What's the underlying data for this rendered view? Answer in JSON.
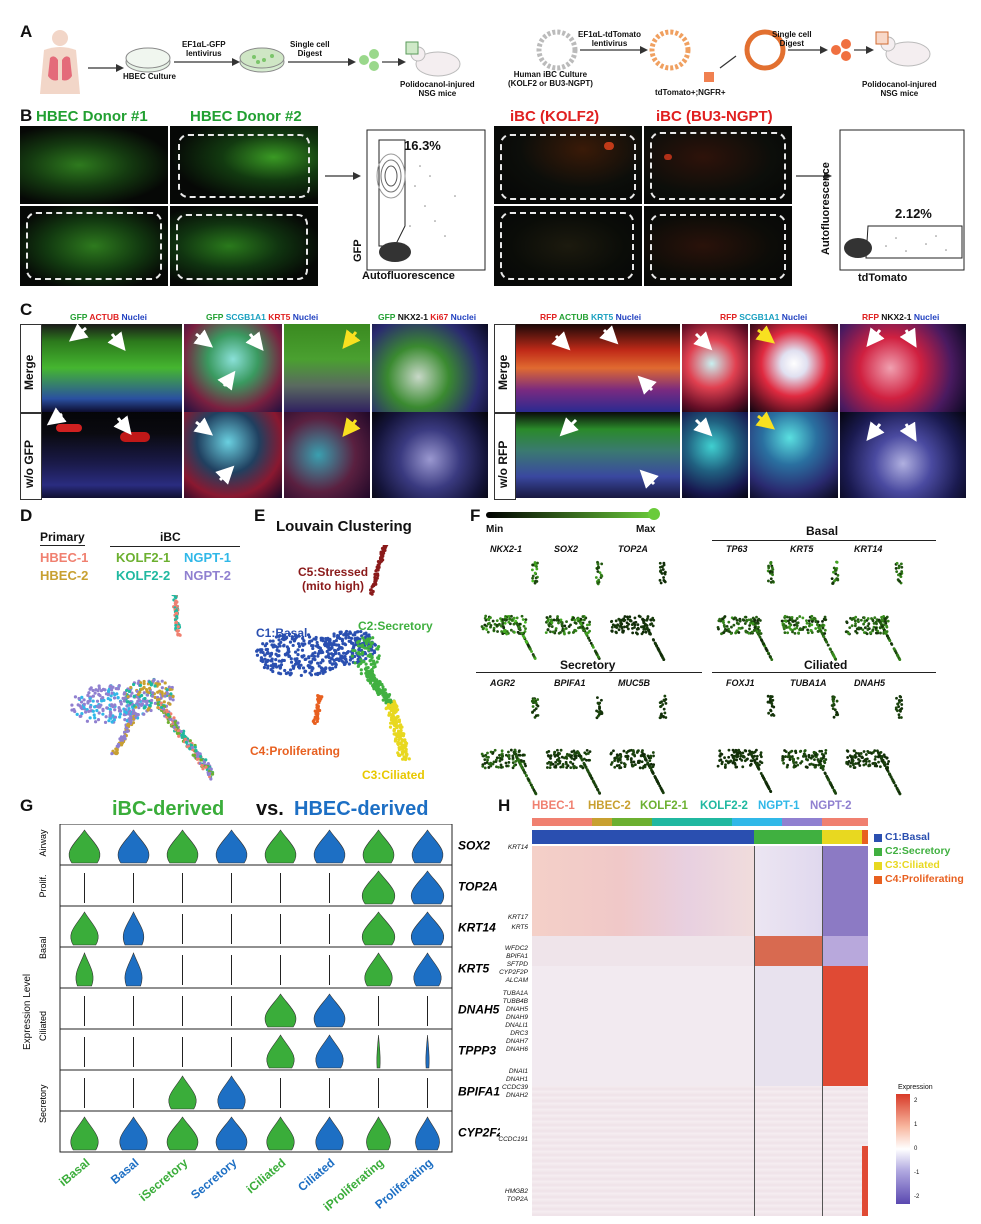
{
  "panels": {
    "A": "A",
    "B": "B",
    "C": "C",
    "D": "D",
    "E": "E",
    "F": "F",
    "G": "G",
    "H": "H"
  },
  "panelA": {
    "hbec_culture": "HBEC Culture",
    "lentivirus_gfp": "EF1αL-GFP\nlentivirus",
    "single_cell_digest_1": "Single cell\nDigest",
    "polidocanol_1": "Polidocanol-injured\nNSG mice",
    "ibc_culture": "Human iBC Culture\n(KOLF2 or BU3-NGPT)",
    "lentivirus_tdt": "EF1αL-tdTomato\nlentivirus",
    "tdtomato_ngfr": "tdTomato+;NGFR+",
    "single_cell_digest_2": "Single cell\nDigest",
    "polidocanol_2": "Polidocanol-injured\nNSG mice"
  },
  "panelB": {
    "hbec_donor1": "HBEC Donor #1",
    "hbec_donor2": "HBEC Donor #2",
    "ibc_kolf2": "iBC (KOLF2)",
    "ibc_bu3": "iBC (BU3-NGPT)",
    "gfp_pct": "16.3%",
    "gfp_axis_y": "GFP",
    "gfp_axis_x": "Autofluorescence",
    "tdt_pct": "2.12%",
    "tdt_axis_y": "Autofluorescence",
    "tdt_axis_x": "tdTomato"
  },
  "panelC": {
    "h1": [
      {
        "t": "GFP",
        "c": "#22a032"
      },
      {
        "t": " ACTUB",
        "c": "#e02020"
      },
      {
        "t": " Nuclei",
        "c": "#2040c0"
      }
    ],
    "h2": [
      {
        "t": "GFP",
        "c": "#22a032"
      },
      {
        "t": " SCGB1A1",
        "c": "#1aa0c0"
      },
      {
        "t": " KRT5",
        "c": "#e02020"
      },
      {
        "t": " Nuclei",
        "c": "#2040c0"
      }
    ],
    "h3": [
      {
        "t": "GFP",
        "c": "#22a032"
      },
      {
        "t": " NKX2-1",
        "c": "#111111"
      },
      {
        "t": " Ki67",
        "c": "#e02020"
      },
      {
        "t": " Nuclei",
        "c": "#2040c0"
      }
    ],
    "h4": [
      {
        "t": "RFP",
        "c": "#e02020"
      },
      {
        "t": " ACTUB",
        "c": "#22a032"
      },
      {
        "t": " KRT5",
        "c": "#1aa0c0"
      },
      {
        "t": " Nuclei",
        "c": "#2040c0"
      }
    ],
    "h5": [
      {
        "t": "RFP",
        "c": "#e02020"
      },
      {
        "t": " SCGB1A1",
        "c": "#1aa0c0"
      },
      {
        "t": " Nuclei",
        "c": "#2040c0"
      }
    ],
    "h6": [
      {
        "t": "RFP",
        "c": "#e02020"
      },
      {
        "t": " NKX2-1",
        "c": "#111111"
      },
      {
        "t": " Nuclei",
        "c": "#2040c0"
      }
    ],
    "row_merge": "Merge",
    "row_wo_gfp": "w/o GFP",
    "row_merge2": "Merge",
    "row_wo_rfp": "w/o RFP"
  },
  "panelD": {
    "primary": "Primary",
    "ibc": "iBC",
    "legend": [
      {
        "label": "HBEC-1",
        "color": "#f08070"
      },
      {
        "label": "HBEC-2",
        "color": "#c8a030"
      },
      {
        "label": "KOLF2-1",
        "color": "#6cb030"
      },
      {
        "label": "KOLF2-2",
        "color": "#20b8a0"
      },
      {
        "label": "NGPT-1",
        "color": "#30b8e8"
      },
      {
        "label": "NGPT-2",
        "color": "#9080d0"
      }
    ]
  },
  "panelE": {
    "title": "Louvain Clustering",
    "c5": "C5:Stressed\n(mito high)",
    "c1": "C1:Basal",
    "c2": "C2:Secretory",
    "c4": "C4:Proliferating",
    "c3": "C3:Ciliated"
  },
  "panelF": {
    "min": "Min",
    "max": "Max",
    "basal": "Basal",
    "secretory": "Secretory",
    "ciliated": "Ciliated",
    "genes_top": [
      "NKX2-1",
      "SOX2",
      "TOP2A",
      "TP63",
      "KRT5",
      "KRT14"
    ],
    "genes_bottom": [
      "AGR2",
      "BPIFA1",
      "MUC5B",
      "FOXJ1",
      "TUBA1A",
      "DNAH5"
    ]
  },
  "panelG": {
    "title_a": "iBC-derived",
    "title_vs": "vs.",
    "title_b": "HBEC-derived",
    "ylabel": "Expression Level",
    "groups": [
      "Airway",
      "Prolif.",
      "Basal",
      "Ciliated",
      "Secretory"
    ],
    "genes": [
      "SOX2",
      "TOP2A",
      "KRT14",
      "KRT5",
      "DNAH5",
      "TPPP3",
      "BPIFA1",
      "CYP2F2P"
    ],
    "categories": [
      "iBasal",
      "Basal",
      "iSecretory",
      "Secretory",
      "iCiliated",
      "Ciliated",
      "iProliferating",
      "Proliferating"
    ]
  },
  "panelH": {
    "samples": [
      {
        "label": "HBEC-1",
        "color": "#f08070"
      },
      {
        "label": "HBEC-2",
        "color": "#c8a030"
      },
      {
        "label": "KOLF2-1",
        "color": "#6cb030"
      },
      {
        "label": "KOLF2-2",
        "color": "#20b8a0"
      },
      {
        "label": "NGPT-1",
        "color": "#30b8e8"
      },
      {
        "label": "NGPT-2",
        "color": "#9080d0"
      }
    ],
    "clusters": [
      {
        "label": "C1:Basal",
        "color": "#2a4fb0"
      },
      {
        "label": "C2:Secretory",
        "color": "#40b040"
      },
      {
        "label": "C3:Ciliated",
        "color": "#e8d820"
      },
      {
        "label": "C4:Proliferating",
        "color": "#e86020"
      }
    ],
    "genes": [
      "KRT14",
      "KRT17",
      "KRT5",
      "WFDC2",
      "BPIFA1",
      "SFTPD",
      "CYP2F2P",
      "ALCAM",
      "TUBA1A",
      "TUBB4B",
      "DNAH5",
      "DNAH9",
      "DNALI1",
      "DRC3",
      "DNAH7",
      "DNAH6",
      "DNAI1",
      "DNAH1",
      "CCDC39",
      "DNAH2",
      "CCDC191",
      "HMGB2",
      "TOP2A"
    ],
    "legend_title": "Expression",
    "legend_ticks": [
      "2",
      "1",
      "0",
      "-1",
      "-2"
    ]
  }
}
